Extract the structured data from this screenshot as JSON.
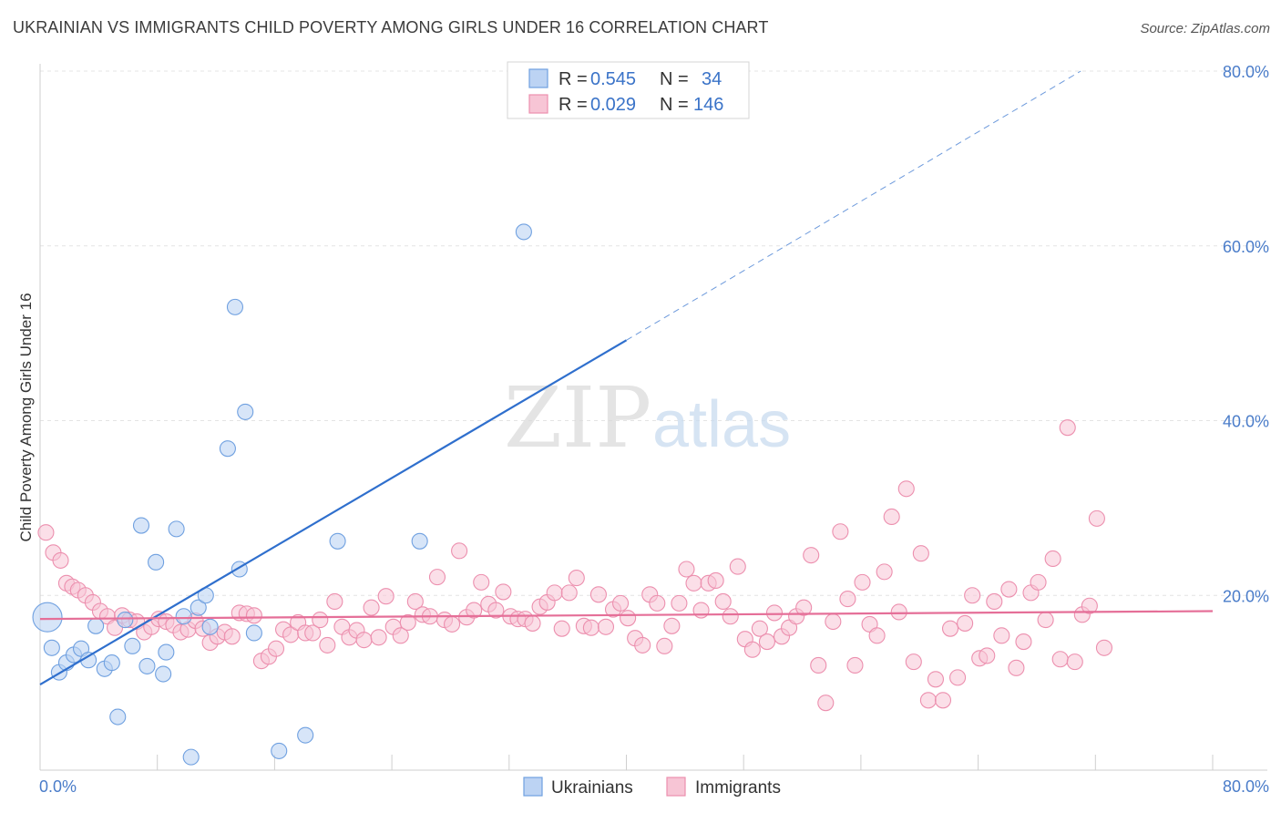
{
  "title": "UKRAINIAN VS IMMIGRANTS CHILD POVERTY AMONG GIRLS UNDER 16 CORRELATION CHART",
  "source": "Source: ZipAtlas.com",
  "watermark": {
    "zip": "ZIP",
    "atlas": "atlas"
  },
  "legend": {
    "rows": [
      {
        "r_label": "R = ",
        "r_value": "0.545",
        "n_label": "N = ",
        "n_value": "34"
      },
      {
        "r_label": "R = ",
        "r_value": "0.029",
        "n_label": "N = ",
        "n_value": "146"
      }
    ]
  },
  "chart_data": {
    "type": "scatter",
    "title": "UKRAINIAN VS IMMIGRANTS CHILD POVERTY AMONG GIRLS UNDER 16 CORRELATION CHART",
    "xlabel": "",
    "ylabel": "Child Poverty Among Girls Under 16",
    "xlim": [
      0,
      80
    ],
    "ylim": [
      0,
      83
    ],
    "x_tick_labels": [
      "0.0%",
      "80.0%"
    ],
    "y_ticks": [
      20,
      40,
      60,
      80
    ],
    "y_tick_labels": [
      "20.0%",
      "40.0%",
      "60.0%",
      "80.0%"
    ],
    "grid": true,
    "colors": {
      "ukrainians": "#6fa0e0",
      "ukrainians_fill": "#bcd3f3",
      "immigrants": "#ec8fae",
      "immigrants_fill": "#f7c5d5",
      "ukr_line": "#2f6fcd",
      "imm_line": "#e56f98"
    },
    "series": [
      {
        "name": "Ukrainians",
        "r": 0.545,
        "n": 34,
        "trend": {
          "x0": 0,
          "y0": 9.8,
          "x1": 40,
          "y1": 49.2,
          "dash_to_x": 71,
          "dash_to_y": 80
        },
        "points": [
          [
            0.5,
            17.5,
            "large"
          ],
          [
            0.8,
            14.0
          ],
          [
            1.3,
            11.2
          ],
          [
            1.8,
            12.3
          ],
          [
            2.3,
            13.2
          ],
          [
            2.8,
            13.9
          ],
          [
            3.3,
            12.6
          ],
          [
            3.8,
            16.5
          ],
          [
            4.4,
            11.6
          ],
          [
            4.9,
            12.3
          ],
          [
            5.3,
            6.1
          ],
          [
            5.8,
            17.2
          ],
          [
            6.3,
            14.2
          ],
          [
            6.9,
            28.0
          ],
          [
            7.3,
            11.9
          ],
          [
            7.9,
            23.8
          ],
          [
            8.4,
            11.0
          ],
          [
            8.6,
            13.5
          ],
          [
            9.3,
            27.6
          ],
          [
            9.8,
            17.6
          ],
          [
            10.3,
            1.5
          ],
          [
            10.8,
            18.6
          ],
          [
            11.3,
            20.0
          ],
          [
            11.6,
            16.4
          ],
          [
            12.8,
            36.8
          ],
          [
            13.3,
            53.0
          ],
          [
            13.6,
            23.0
          ],
          [
            14.0,
            41.0
          ],
          [
            14.6,
            15.7
          ],
          [
            16.3,
            2.2
          ],
          [
            18.1,
            4.0
          ],
          [
            20.3,
            26.2
          ],
          [
            25.9,
            26.2
          ],
          [
            33.0,
            61.6
          ]
        ]
      },
      {
        "name": "Immigrants",
        "r": 0.029,
        "n": 146,
        "trend": {
          "x0": 0,
          "y0": 17.3,
          "x1": 80,
          "y1": 18.2
        },
        "points": [
          [
            0.4,
            27.2
          ],
          [
            0.9,
            24.9
          ],
          [
            1.4,
            24.0
          ],
          [
            1.8,
            21.4
          ],
          [
            2.2,
            21.0
          ],
          [
            2.6,
            20.6
          ],
          [
            3.1,
            20.0
          ],
          [
            3.6,
            19.2
          ],
          [
            4.1,
            18.2
          ],
          [
            4.6,
            17.6
          ],
          [
            5.1,
            16.3
          ],
          [
            5.6,
            17.7
          ],
          [
            6.1,
            17.2
          ],
          [
            6.6,
            17.0
          ],
          [
            7.1,
            15.8
          ],
          [
            7.6,
            16.4
          ],
          [
            8.1,
            17.3
          ],
          [
            8.6,
            17.0
          ],
          [
            9.1,
            16.6
          ],
          [
            9.6,
            15.8
          ],
          [
            10.1,
            16.1
          ],
          [
            10.6,
            17.1
          ],
          [
            11.1,
            16.2
          ],
          [
            11.6,
            14.6
          ],
          [
            12.1,
            15.3
          ],
          [
            12.6,
            15.8
          ],
          [
            13.1,
            15.3
          ],
          [
            13.6,
            18.0
          ],
          [
            14.1,
            17.9
          ],
          [
            14.6,
            17.7
          ],
          [
            15.1,
            12.5
          ],
          [
            15.6,
            13.0
          ],
          [
            16.1,
            13.9
          ],
          [
            16.6,
            16.1
          ],
          [
            17.1,
            15.5
          ],
          [
            17.6,
            16.9
          ],
          [
            18.1,
            15.7
          ],
          [
            18.6,
            15.7
          ],
          [
            19.1,
            17.2
          ],
          [
            19.6,
            14.3
          ],
          [
            20.1,
            19.3
          ],
          [
            20.6,
            16.4
          ],
          [
            21.1,
            15.2
          ],
          [
            21.6,
            16.0
          ],
          [
            22.1,
            14.9
          ],
          [
            22.6,
            18.6
          ],
          [
            23.1,
            15.2
          ],
          [
            23.6,
            19.9
          ],
          [
            24.1,
            16.4
          ],
          [
            24.6,
            15.4
          ],
          [
            25.1,
            16.9
          ],
          [
            25.6,
            19.3
          ],
          [
            26.1,
            17.8
          ],
          [
            26.6,
            17.6
          ],
          [
            27.1,
            22.1
          ],
          [
            27.6,
            17.2
          ],
          [
            28.1,
            16.7
          ],
          [
            28.6,
            25.1
          ],
          [
            29.1,
            17.5
          ],
          [
            29.6,
            18.3
          ],
          [
            30.1,
            21.5
          ],
          [
            30.6,
            19.0
          ],
          [
            31.1,
            18.3
          ],
          [
            31.6,
            20.4
          ],
          [
            32.1,
            17.6
          ],
          [
            32.6,
            17.3
          ],
          [
            33.1,
            17.3
          ],
          [
            33.6,
            16.8
          ],
          [
            34.1,
            18.7
          ],
          [
            34.6,
            19.2
          ],
          [
            35.1,
            20.3
          ],
          [
            35.6,
            16.2
          ],
          [
            36.1,
            20.3
          ],
          [
            36.6,
            22.0
          ],
          [
            37.1,
            16.5
          ],
          [
            37.6,
            16.3
          ],
          [
            38.1,
            20.1
          ],
          [
            38.6,
            16.4
          ],
          [
            39.1,
            18.4
          ],
          [
            39.6,
            19.1
          ],
          [
            40.1,
            17.4
          ],
          [
            40.6,
            15.1
          ],
          [
            41.1,
            14.3
          ],
          [
            41.6,
            20.1
          ],
          [
            42.1,
            19.1
          ],
          [
            42.6,
            14.2
          ],
          [
            43.1,
            16.5
          ],
          [
            43.6,
            19.1
          ],
          [
            44.1,
            23.0
          ],
          [
            44.6,
            21.4
          ],
          [
            45.1,
            18.3
          ],
          [
            45.6,
            21.4
          ],
          [
            46.1,
            21.7
          ],
          [
            46.6,
            19.3
          ],
          [
            47.1,
            17.6
          ],
          [
            47.6,
            23.3
          ],
          [
            48.1,
            15.0
          ],
          [
            48.6,
            13.8
          ],
          [
            49.1,
            16.2
          ],
          [
            49.6,
            14.7
          ],
          [
            50.1,
            18.0
          ],
          [
            50.6,
            15.3
          ],
          [
            51.1,
            16.3
          ],
          [
            51.6,
            17.6
          ],
          [
            52.1,
            18.6
          ],
          [
            52.6,
            24.6
          ],
          [
            53.1,
            12.0
          ],
          [
            53.6,
            7.7
          ],
          [
            54.1,
            17.0
          ],
          [
            54.6,
            27.3
          ],
          [
            55.1,
            19.6
          ],
          [
            55.6,
            12.0
          ],
          [
            56.1,
            21.5
          ],
          [
            56.6,
            16.7
          ],
          [
            57.1,
            15.4
          ],
          [
            57.6,
            22.7
          ],
          [
            58.1,
            29.0
          ],
          [
            58.6,
            18.1
          ],
          [
            59.1,
            32.2
          ],
          [
            59.6,
            12.4
          ],
          [
            60.1,
            24.8
          ],
          [
            60.6,
            8.0
          ],
          [
            61.1,
            10.4
          ],
          [
            61.6,
            8.0
          ],
          [
            62.1,
            16.2
          ],
          [
            62.6,
            10.6
          ],
          [
            63.1,
            16.8
          ],
          [
            63.6,
            20.0
          ],
          [
            64.1,
            12.8
          ],
          [
            64.6,
            13.1
          ],
          [
            65.1,
            19.3
          ],
          [
            65.6,
            15.4
          ],
          [
            66.1,
            20.7
          ],
          [
            66.6,
            11.7
          ],
          [
            67.1,
            14.7
          ],
          [
            67.6,
            20.3
          ],
          [
            68.1,
            21.5
          ],
          [
            68.6,
            17.2
          ],
          [
            69.1,
            24.2
          ],
          [
            69.6,
            12.7
          ],
          [
            70.1,
            39.2
          ],
          [
            70.6,
            12.4
          ],
          [
            71.1,
            17.8
          ],
          [
            71.6,
            18.8
          ],
          [
            72.1,
            28.8
          ],
          [
            72.6,
            14.0
          ]
        ]
      }
    ]
  },
  "bottom_legend": [
    {
      "label": "Ukrainians"
    },
    {
      "label": "Immigrants"
    }
  ]
}
